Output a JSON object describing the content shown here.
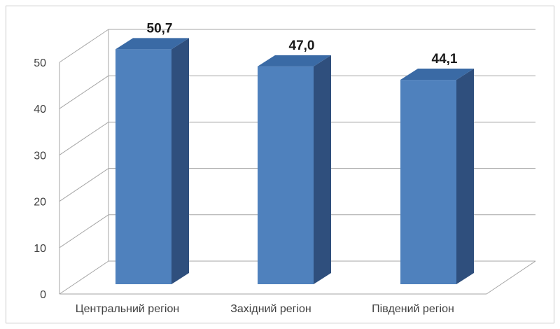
{
  "chart_data": {
    "type": "bar",
    "style": "3d-column",
    "categories": [
      "Центральний регіон",
      "Західний регіон",
      "Південий регіон"
    ],
    "values": [
      50.7,
      47.0,
      44.1
    ],
    "data_labels": [
      "50,7",
      "47,0",
      "44,1"
    ],
    "title": "",
    "xlabel": "",
    "ylabel": "",
    "ylim": [
      0,
      50
    ],
    "yticks": [
      0,
      10,
      20,
      30,
      40,
      50
    ],
    "grid": true,
    "legend": "none",
    "colors": {
      "front": "#4f81bd",
      "side": "#2f4f7d",
      "top": "#3a6aa5",
      "grid": "#a6a6a6"
    }
  }
}
